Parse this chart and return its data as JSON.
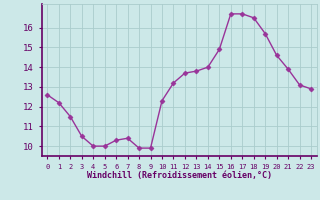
{
  "x": [
    0,
    1,
    2,
    3,
    4,
    5,
    6,
    7,
    8,
    9,
    10,
    11,
    12,
    13,
    14,
    15,
    16,
    17,
    18,
    19,
    20,
    21,
    22,
    23
  ],
  "y": [
    12.6,
    12.2,
    11.5,
    10.5,
    10.0,
    10.0,
    10.3,
    10.4,
    9.9,
    9.9,
    12.3,
    13.2,
    13.7,
    13.8,
    14.0,
    14.9,
    16.7,
    16.7,
    16.5,
    15.7,
    14.6,
    13.9,
    13.1,
    12.9
  ],
  "line_color": "#993399",
  "marker": "D",
  "marker_size": 2.5,
  "bg_color": "#cce8e8",
  "grid_color": "#aacccc",
  "text_color": "#660066",
  "xlabel": "Windchill (Refroidissement éolien,°C)",
  "ylim": [
    9.5,
    17.2
  ],
  "xlim": [
    -0.5,
    23.5
  ],
  "yticks": [
    10,
    11,
    12,
    13,
    14,
    15,
    16
  ],
  "xtick_labels": [
    "0",
    "1",
    "2",
    "3",
    "4",
    "5",
    "6",
    "7",
    "8",
    "9",
    "10",
    "11",
    "12",
    "13",
    "14",
    "15",
    "16",
    "17",
    "18",
    "19",
    "20",
    "21",
    "22",
    "23"
  ]
}
